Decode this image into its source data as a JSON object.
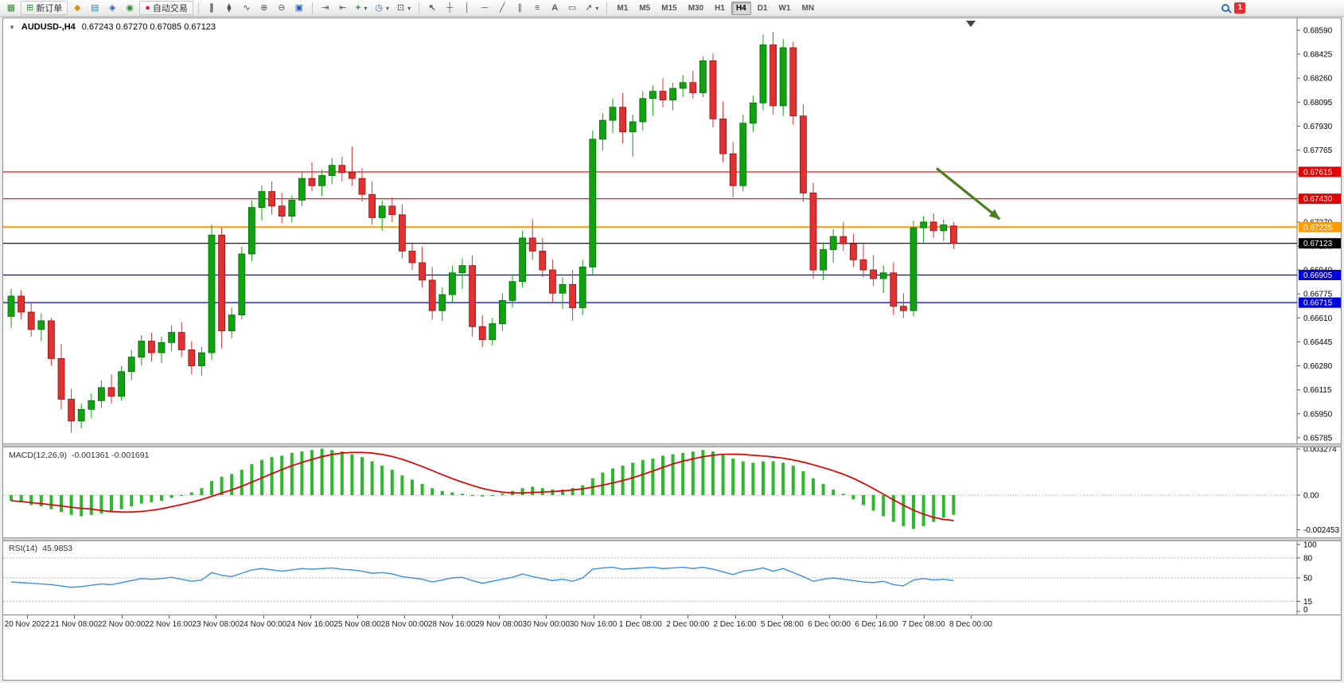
{
  "toolbar": {
    "new_order_label": "新订单",
    "auto_trading_label": "自动交易",
    "timeframes": [
      {
        "label": "M1"
      },
      {
        "label": "M5"
      },
      {
        "label": "M15"
      },
      {
        "label": "M30"
      },
      {
        "label": "H1"
      },
      {
        "label": "H4",
        "active": true
      },
      {
        "label": "D1"
      },
      {
        "label": "W1"
      },
      {
        "label": "MN"
      }
    ],
    "notification_count": "1"
  },
  "icons": {
    "new_chart": "▦",
    "new_order": "⊞",
    "metaeditor": "◆",
    "market_watch": "▤",
    "navigator": "◈",
    "data_window": "◉",
    "autotrading_dot": "●",
    "bar_chart": "∥",
    "candlestick_chart": "⧫",
    "line_chart": "∿",
    "zoom_in": "⊕",
    "zoom_out": "⊖",
    "tile_windows": "▣",
    "auto_scroll": "⇥",
    "chart_shift": "⇤",
    "indicators": "+",
    "periods": "◷",
    "templates": "⊡",
    "cursor": "↖",
    "crosshair": "┼",
    "vertical_line": "│",
    "horizontal_line": "─",
    "trendline": "╱",
    "channel": "∥",
    "fibonacci": "≡",
    "text_tool": "A",
    "label_tool": "▭",
    "arrows_tool": "↗",
    "caret": "▾",
    "collapse": "▼"
  },
  "chart": {
    "symbol_period": "AUDUSD-,H4",
    "ohlc": "0.67243 0.67270 0.67085 0.67123"
  },
  "indicators": {
    "macd": {
      "title": "MACD(12,26,9)",
      "values": "-0.001361 -0.001691"
    },
    "rsi": {
      "title": "RSI(14)",
      "value": "45.9853"
    }
  },
  "chart_data": {
    "type": "candlestick",
    "symbol": "AUDUSD-",
    "timeframe": "H4",
    "title": "AUDUSD-,H4",
    "ohlc_current": {
      "open": 0.67243,
      "high": 0.6727,
      "low": 0.67085,
      "close": 0.67123
    },
    "price_range": {
      "min": 0.6576,
      "max": 0.6864
    },
    "price_axis": {
      "ticks": [
        "0.68590",
        "0.68425",
        "0.68260",
        "0.68095",
        "0.67930",
        "0.67765",
        "0.67600",
        "0.67435",
        "0.67270",
        "0.67105",
        "0.66940",
        "0.66775",
        "0.66610",
        "0.66445",
        "0.66280",
        "0.66115",
        "0.65950",
        "0.65785"
      ]
    },
    "levels": [
      {
        "price": 0.67615,
        "label": "0.67615",
        "color": "#e00000"
      },
      {
        "price": 0.6743,
        "label": "0.67430",
        "color": "#e00000"
      },
      {
        "price": 0.67235,
        "label": "0.67235",
        "color": "#ff9d00"
      },
      {
        "price": 0.67123,
        "label": "0.67123",
        "color": "#000000"
      },
      {
        "price": 0.66905,
        "label": "0.66905",
        "color": "#0000d8"
      },
      {
        "price": 0.66715,
        "label": "0.66715",
        "color": "#0000d8"
      }
    ],
    "up_color": "#0fa30f",
    "down_color": "#e03030",
    "candles": [
      [
        0.6662,
        0.6681,
        0.6654,
        0.6676
      ],
      [
        0.6676,
        0.668,
        0.666,
        0.6665
      ],
      [
        0.6665,
        0.6672,
        0.6648,
        0.6653
      ],
      [
        0.6653,
        0.6664,
        0.6645,
        0.6659
      ],
      [
        0.6659,
        0.6661,
        0.6628,
        0.6633
      ],
      [
        0.6633,
        0.6643,
        0.6598,
        0.6605
      ],
      [
        0.6605,
        0.6612,
        0.6582,
        0.659
      ],
      [
        0.659,
        0.6602,
        0.6585,
        0.6598
      ],
      [
        0.6598,
        0.6609,
        0.6592,
        0.6604
      ],
      [
        0.6604,
        0.6618,
        0.6599,
        0.6613
      ],
      [
        0.6613,
        0.6622,
        0.6602,
        0.6607
      ],
      [
        0.6607,
        0.6628,
        0.6604,
        0.6624
      ],
      [
        0.6624,
        0.6639,
        0.6618,
        0.6634
      ],
      [
        0.6634,
        0.6649,
        0.6628,
        0.6645
      ],
      [
        0.6645,
        0.6651,
        0.6631,
        0.6637
      ],
      [
        0.6637,
        0.6648,
        0.663,
        0.6644
      ],
      [
        0.6644,
        0.6656,
        0.6638,
        0.6651
      ],
      [
        0.6651,
        0.6658,
        0.6634,
        0.6639
      ],
      [
        0.6639,
        0.6645,
        0.6622,
        0.6628
      ],
      [
        0.6628,
        0.6641,
        0.6621,
        0.6637
      ],
      [
        0.6637,
        0.6725,
        0.6632,
        0.6718
      ],
      [
        0.6718,
        0.6723,
        0.664,
        0.6652
      ],
      [
        0.6652,
        0.6668,
        0.6647,
        0.6663
      ],
      [
        0.6663,
        0.671,
        0.666,
        0.6705
      ],
      [
        0.6705,
        0.6742,
        0.67,
        0.6737
      ],
      [
        0.6737,
        0.6752,
        0.6728,
        0.6748
      ],
      [
        0.6748,
        0.6755,
        0.6732,
        0.6738
      ],
      [
        0.6738,
        0.6747,
        0.6726,
        0.6731
      ],
      [
        0.6731,
        0.6745,
        0.6727,
        0.6742
      ],
      [
        0.6742,
        0.6762,
        0.6738,
        0.6757
      ],
      [
        0.6757,
        0.6768,
        0.6748,
        0.6752
      ],
      [
        0.6752,
        0.6763,
        0.6745,
        0.6759
      ],
      [
        0.6759,
        0.6771,
        0.6753,
        0.6766
      ],
      [
        0.6766,
        0.6772,
        0.6755,
        0.6761
      ],
      [
        0.6761,
        0.6779,
        0.6752,
        0.6757
      ],
      [
        0.6757,
        0.6764,
        0.6741,
        0.6746
      ],
      [
        0.6746,
        0.6755,
        0.6725,
        0.673
      ],
      [
        0.673,
        0.6742,
        0.6721,
        0.6738
      ],
      [
        0.6738,
        0.6744,
        0.6727,
        0.6732
      ],
      [
        0.6732,
        0.6739,
        0.6702,
        0.6707
      ],
      [
        0.6707,
        0.6713,
        0.6694,
        0.6699
      ],
      [
        0.6699,
        0.671,
        0.6682,
        0.6687
      ],
      [
        0.6687,
        0.6696,
        0.666,
        0.6666
      ],
      [
        0.6666,
        0.6682,
        0.6659,
        0.6677
      ],
      [
        0.6677,
        0.6697,
        0.6672,
        0.6692
      ],
      [
        0.6692,
        0.6702,
        0.6681,
        0.6697
      ],
      [
        0.6697,
        0.6704,
        0.6648,
        0.6655
      ],
      [
        0.6655,
        0.6663,
        0.6641,
        0.6646
      ],
      [
        0.6646,
        0.6661,
        0.6642,
        0.6657
      ],
      [
        0.6657,
        0.6678,
        0.6652,
        0.6673
      ],
      [
        0.6673,
        0.6691,
        0.6668,
        0.6686
      ],
      [
        0.6686,
        0.6721,
        0.6682,
        0.6716
      ],
      [
        0.6716,
        0.6729,
        0.6701,
        0.6707
      ],
      [
        0.6707,
        0.6716,
        0.6689,
        0.6694
      ],
      [
        0.6694,
        0.6701,
        0.6672,
        0.6678
      ],
      [
        0.6678,
        0.6689,
        0.6667,
        0.6684
      ],
      [
        0.6684,
        0.6694,
        0.6659,
        0.6668
      ],
      [
        0.6668,
        0.6701,
        0.6663,
        0.6696
      ],
      [
        0.6696,
        0.679,
        0.6691,
        0.6784
      ],
      [
        0.6784,
        0.6802,
        0.6776,
        0.6797
      ],
      [
        0.6797,
        0.6812,
        0.6788,
        0.6806
      ],
      [
        0.6806,
        0.6816,
        0.6781,
        0.6789
      ],
      [
        0.6789,
        0.6801,
        0.6772,
        0.6796
      ],
      [
        0.6796,
        0.6817,
        0.679,
        0.6812
      ],
      [
        0.6812,
        0.6821,
        0.68,
        0.6817
      ],
      [
        0.6817,
        0.6826,
        0.6806,
        0.6811
      ],
      [
        0.6811,
        0.6823,
        0.6804,
        0.6819
      ],
      [
        0.6819,
        0.6828,
        0.6813,
        0.6823
      ],
      [
        0.6823,
        0.6831,
        0.6812,
        0.6816
      ],
      [
        0.6816,
        0.6841,
        0.6813,
        0.6838
      ],
      [
        0.6838,
        0.6843,
        0.6792,
        0.6798
      ],
      [
        0.6798,
        0.681,
        0.6768,
        0.6774
      ],
      [
        0.6774,
        0.6782,
        0.6744,
        0.6752
      ],
      [
        0.6752,
        0.6801,
        0.6748,
        0.6795
      ],
      [
        0.6795,
        0.6814,
        0.6789,
        0.6809
      ],
      [
        0.6809,
        0.6856,
        0.6804,
        0.6849
      ],
      [
        0.6849,
        0.6858,
        0.6801,
        0.6807
      ],
      [
        0.6807,
        0.6853,
        0.68,
        0.6847
      ],
      [
        0.6847,
        0.6851,
        0.6794,
        0.68
      ],
      [
        0.68,
        0.6808,
        0.6741,
        0.6747
      ],
      [
        0.6747,
        0.6754,
        0.6688,
        0.6694
      ],
      [
        0.6694,
        0.6713,
        0.6687,
        0.6708
      ],
      [
        0.6708,
        0.6722,
        0.6699,
        0.6717
      ],
      [
        0.6717,
        0.6727,
        0.6707,
        0.6712
      ],
      [
        0.6712,
        0.6719,
        0.6696,
        0.6701
      ],
      [
        0.6701,
        0.6712,
        0.6689,
        0.6694
      ],
      [
        0.6694,
        0.6704,
        0.6683,
        0.6688
      ],
      [
        0.6688,
        0.6697,
        0.6678,
        0.6692
      ],
      [
        0.6692,
        0.6699,
        0.6663,
        0.6669
      ],
      [
        0.6669,
        0.6678,
        0.6661,
        0.6666
      ],
      [
        0.6666,
        0.6728,
        0.6662,
        0.6723
      ],
      [
        0.6723,
        0.6731,
        0.6713,
        0.6727
      ],
      [
        0.6727,
        0.6733,
        0.6716,
        0.6721
      ],
      [
        0.6721,
        0.6729,
        0.6714,
        0.6725
      ],
      [
        0.67243,
        0.6727,
        0.67085,
        0.67123
      ]
    ],
    "time_labels": [
      "20 Nov 2022",
      "21 Nov 08:00",
      "22 Nov 00:00",
      "22 Nov 16:00",
      "23 Nov 08:00",
      "24 Nov 00:00",
      "24 Nov 16:00",
      "25 Nov 08:00",
      "28 Nov 00:00",
      "28 Nov 16:00",
      "29 Nov 08:00",
      "30 Nov 00:00",
      "30 Nov 16:00",
      "1 Dec 08:00",
      "2 Dec 00:00",
      "2 Dec 16:00",
      "5 Dec 08:00",
      "6 Dec 00:00",
      "6 Dec 16:00",
      "7 Dec 08:00",
      "8 Dec 00:00"
    ],
    "annotation_arrow": {
      "x1_bar": 92.3,
      "price1": 0.6764,
      "x2_bar": 98.6,
      "price2": 0.6729,
      "color": "#4a7d22"
    },
    "macd": {
      "label": "MACD(12,26,9)",
      "current_values": [
        -0.001361,
        -0.001691
      ],
      "axis_labels": [
        "0.003274",
        "0.00",
        "-0.002453"
      ],
      "axis_values": [
        0.003274,
        0,
        -0.002453
      ],
      "color": "#2db82d",
      "signal_color": "#dd0000",
      "histogram": [
        -0.0004,
        -0.0005,
        -0.0007,
        -0.0008,
        -0.001,
        -0.0012,
        -0.0014,
        -0.0015,
        -0.0014,
        -0.0013,
        -0.0012,
        -0.001,
        -0.0008,
        -0.0006,
        -0.0005,
        -0.0004,
        -0.0002,
        0.0,
        0.0002,
        0.0005,
        0.001,
        0.0013,
        0.0015,
        0.0018,
        0.0022,
        0.0025,
        0.0027,
        0.0028,
        0.003,
        0.0031,
        0.0032,
        0.0033,
        0.0032,
        0.0031,
        0.0029,
        0.0027,
        0.0024,
        0.0021,
        0.0018,
        0.0014,
        0.0011,
        0.0008,
        0.0005,
        0.0003,
        0.0002,
        0.0001,
        0.0,
        -0.0001,
        0.0,
        0.0001,
        0.0003,
        0.0005,
        0.0006,
        0.0005,
        0.0004,
        0.0004,
        0.0005,
        0.0007,
        0.0012,
        0.0016,
        0.0019,
        0.0021,
        0.0023,
        0.0025,
        0.0026,
        0.0028,
        0.0029,
        0.003,
        0.0031,
        0.0032,
        0.0031,
        0.0029,
        0.0026,
        0.0024,
        0.0023,
        0.0024,
        0.0024,
        0.0023,
        0.0021,
        0.0017,
        0.0012,
        0.0008,
        0.0004,
        0.0001,
        -0.0003,
        -0.0007,
        -0.0011,
        -0.0015,
        -0.0019,
        -0.0022,
        -0.0024,
        -0.0022,
        -0.0019,
        -0.0016,
        -0.0014
      ]
    },
    "rsi": {
      "label": "RSI(14)",
      "current_value": 45.9853,
      "axis_labels": [
        "100",
        "80",
        "50",
        "15",
        "0"
      ],
      "axis_values": [
        100,
        80,
        50,
        15,
        0
      ],
      "level_lines": [
        80,
        50,
        15
      ],
      "color": "#3b8fe0",
      "values": [
        44,
        43,
        42,
        41,
        40,
        38,
        36,
        37,
        39,
        41,
        40,
        43,
        46,
        49,
        48,
        49,
        51,
        48,
        45,
        47,
        58,
        54,
        52,
        57,
        62,
        64,
        62,
        60,
        62,
        64,
        63,
        64,
        65,
        63,
        62,
        60,
        57,
        58,
        56,
        52,
        50,
        48,
        44,
        47,
        50,
        51,
        46,
        42,
        45,
        48,
        51,
        56,
        52,
        49,
        46,
        48,
        45,
        50,
        63,
        65,
        66,
        63,
        64,
        65,
        66,
        64,
        65,
        66,
        64,
        66,
        63,
        59,
        55,
        60,
        62,
        65,
        60,
        64,
        58,
        52,
        45,
        48,
        50,
        48,
        46,
        44,
        43,
        45,
        40,
        38,
        47,
        49,
        47,
        48,
        46
      ]
    }
  }
}
